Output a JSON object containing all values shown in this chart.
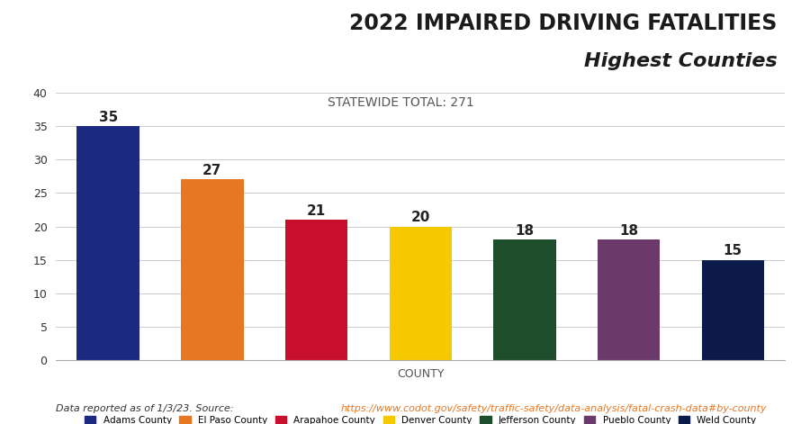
{
  "title_line1": "2022 IMPAIRED DRIVING FATALITIES",
  "title_line2": "Highest Counties",
  "statewide_label": "STATEWIDE TOTAL: 271",
  "xlabel": "COUNTY",
  "ylabel": "",
  "categories": [
    "Adams County",
    "El Paso County",
    "Arapahoe County",
    "Denver County",
    "Jefferson County",
    "Pueblo County",
    "Weld County"
  ],
  "values": [
    35,
    27,
    21,
    20,
    18,
    18,
    15
  ],
  "bar_colors": [
    "#1B2A80",
    "#E87722",
    "#C8102E",
    "#F5C800",
    "#1E4D2B",
    "#6B3A6B",
    "#0D1B4B"
  ],
  "ylim": [
    0,
    40
  ],
  "yticks": [
    0,
    5,
    10,
    15,
    20,
    25,
    30,
    35,
    40
  ],
  "header_bg": "#F0F0F0",
  "orange_bar_color": "#E87722",
  "footnote_plain": "Data reported as of 1/3/23. Source: ",
  "footnote_link": "https://www.codot.gov/safety/traffic-safety/data-analysis/fatal-crash-data#by-county",
  "footnote_link_color": "#E87722",
  "title_color": "#1B1B1B",
  "statewide_color": "#555555",
  "value_label_fontsize": 11,
  "axis_label_fontsize": 9
}
